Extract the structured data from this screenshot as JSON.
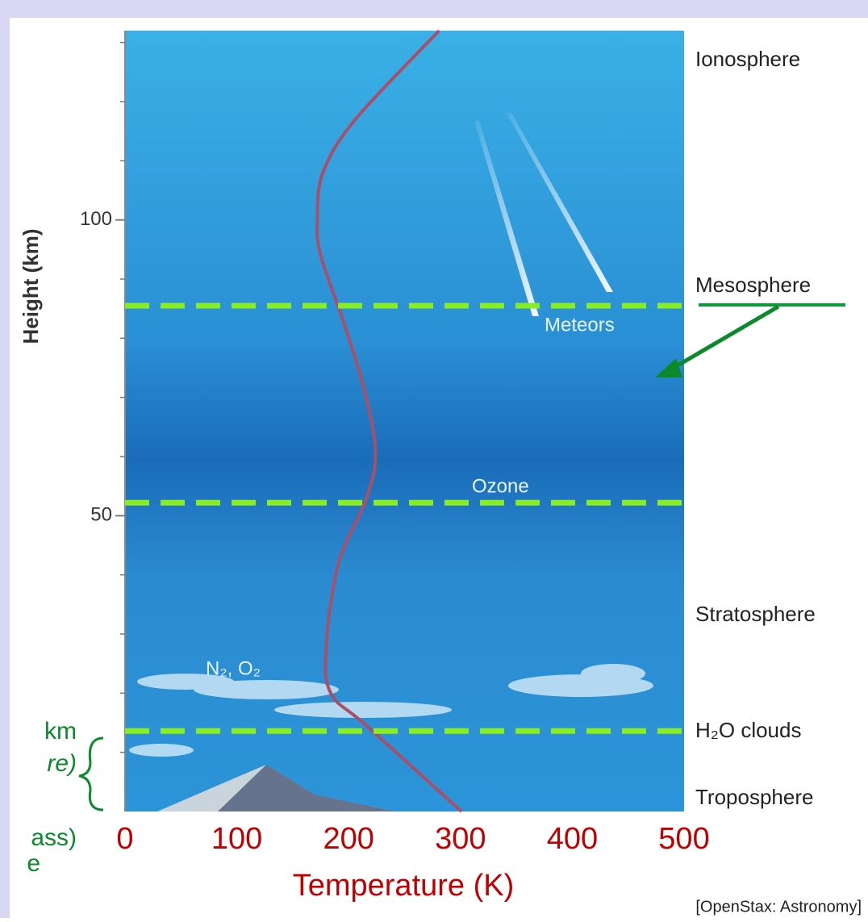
{
  "chart_data": {
    "type": "line",
    "title": null,
    "x_label": "Temperature (K)",
    "y_label": "Height (km)",
    "series": [
      {
        "name": null,
        "color": "#a8506a",
        "x": [
          301,
          216,
          184,
          180,
          191,
          216,
          224,
          213,
          195,
          175,
          172,
          177,
          206,
          281
        ],
        "values": [
          0,
          14.5,
          20,
          28,
          42,
          53,
          61,
          72,
          83,
          94,
          100,
          108,
          117,
          132
        ]
      }
    ],
    "xlim": [
      0,
      500
    ],
    "xticks": [
      0,
      100,
      200,
      300,
      400,
      500
    ],
    "ylim": [
      0,
      132
    ],
    "yticks": [
      50,
      100
    ],
    "yminorticks": [
      10,
      20,
      30,
      40,
      60,
      70,
      80,
      90,
      110,
      120,
      130
    ],
    "reference_lines": [
      85.5,
      52.2,
      13.6
    ],
    "reference_color": "#88ee22",
    "layer_labels": [
      "Ionosphere",
      "Mesosphere",
      "Stratosphere",
      "H₂O clouds",
      "Troposphere"
    ],
    "inner_labels": [
      "Meteors",
      "Ozone",
      "N₂, O₂"
    ],
    "side_notes": [
      "km",
      "re)",
      "ass)",
      "e"
    ],
    "source": "[OpenStax: Astronomy]"
  }
}
